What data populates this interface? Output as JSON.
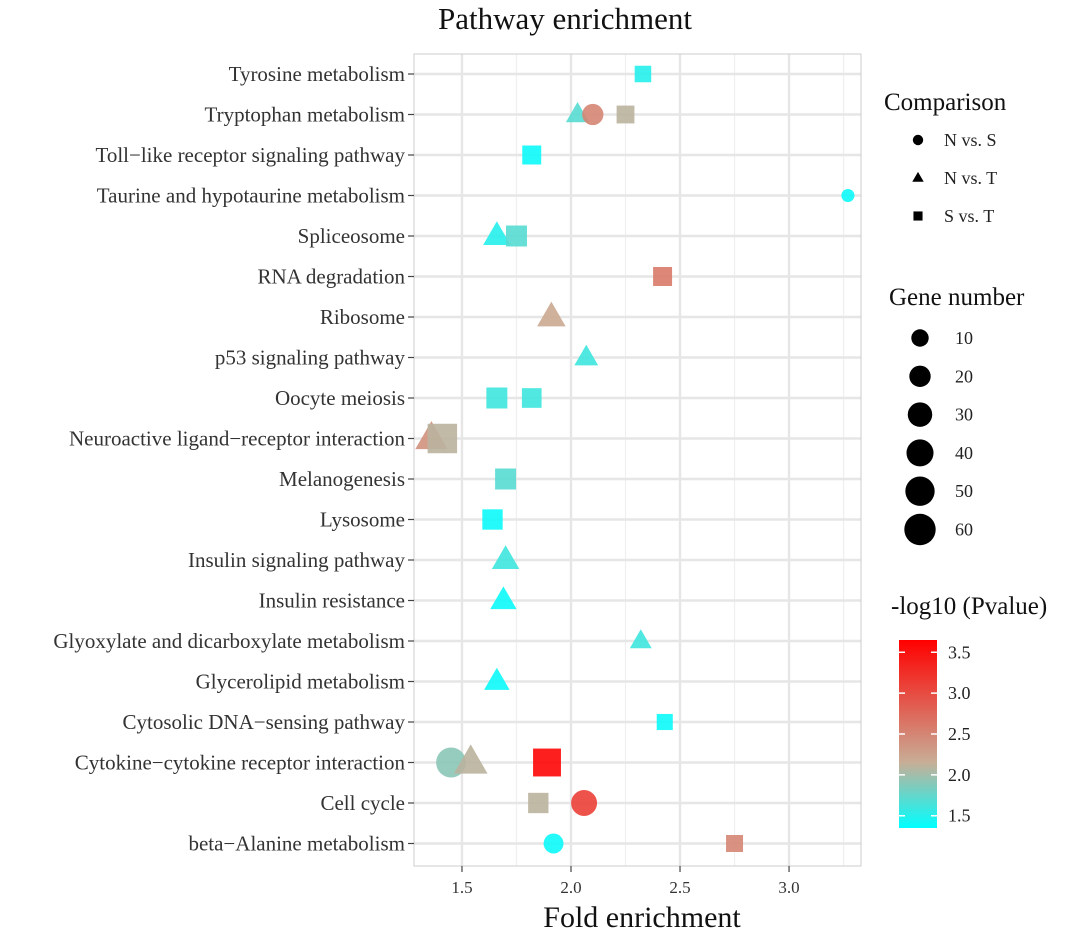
{
  "chart_data": {
    "type": "scatter",
    "title": "Pathway enrichment",
    "xlabel": "Fold enrichment",
    "ylabel": "",
    "xlim": [
      1.28,
      3.33
    ],
    "xticks": [
      1.5,
      2.0,
      2.5,
      3.0
    ],
    "xtick_labels": [
      "1.5",
      "2.0",
      "2.5",
      "3.0"
    ],
    "categories": [
      "Tyrosine metabolism",
      "Tryptophan metabolism",
      "Toll−like receptor signaling pathway",
      "Taurine and hypotaurine metabolism",
      "Spliceosome",
      "RNA degradation",
      "Ribosome",
      "p53 signaling pathway",
      "Oocyte meiosis",
      "Neuroactive ligand−receptor interaction",
      "Melanogenesis",
      "Lysosome",
      "Insulin signaling pathway",
      "Insulin resistance",
      "Glyoxylate and dicarboxylate metabolism",
      "Glycerolipid metabolism",
      "Cytosolic DNA−sensing pathway",
      "Cytokine−cytokine receptor interaction",
      "Cell cycle",
      "beta−Alanine metabolism"
    ],
    "points": [
      {
        "pathway": "Tyrosine metabolism",
        "comparison": "S vs. T",
        "fold": 2.33,
        "genes": 10,
        "neglog10p": 1.5
      },
      {
        "pathway": "Tryptophan metabolism",
        "comparison": "N vs. T",
        "fold": 2.03,
        "genes": 15,
        "neglog10p": 1.7
      },
      {
        "pathway": "Tryptophan metabolism",
        "comparison": "N vs. S",
        "fold": 2.1,
        "genes": 15,
        "neglog10p": 2.5
      },
      {
        "pathway": "Tryptophan metabolism",
        "comparison": "S vs. T",
        "fold": 2.25,
        "genes": 13,
        "neglog10p": 2.1
      },
      {
        "pathway": "Toll−like receptor signaling pathway",
        "comparison": "S vs. T",
        "fold": 1.82,
        "genes": 16,
        "neglog10p": 1.4
      },
      {
        "pathway": "Taurine and hypotaurine metabolism",
        "comparison": "N vs. S",
        "fold": 3.27,
        "genes": 2,
        "neglog10p": 1.4
      },
      {
        "pathway": "Spliceosome",
        "comparison": "N vs. T",
        "fold": 1.66,
        "genes": 25,
        "neglog10p": 1.5
      },
      {
        "pathway": "Spliceosome",
        "comparison": "S vs. T",
        "fold": 1.75,
        "genes": 22,
        "neglog10p": 1.7
      },
      {
        "pathway": "RNA degradation",
        "comparison": "S vs. T",
        "fold": 2.42,
        "genes": 16,
        "neglog10p": 2.6
      },
      {
        "pathway": "Ribosome",
        "comparison": "N vs. T",
        "fold": 1.91,
        "genes": 28,
        "neglog10p": 2.2
      },
      {
        "pathway": "p53 signaling pathway",
        "comparison": "N vs. T",
        "fold": 2.07,
        "genes": 16,
        "neglog10p": 1.6
      },
      {
        "pathway": "Oocyte meiosis",
        "comparison": "S vs. T",
        "fold": 1.66,
        "genes": 22,
        "neglog10p": 1.6
      },
      {
        "pathway": "Oocyte meiosis",
        "comparison": "S vs. T",
        "fold": 1.82,
        "genes": 18,
        "neglog10p": 1.6
      },
      {
        "pathway": "Neuroactive ligand−receptor interaction",
        "comparison": "N vs. T",
        "fold": 1.36,
        "genes": 40,
        "neglog10p": 2.4
      },
      {
        "pathway": "Neuroactive ligand−receptor interaction",
        "comparison": "S vs. T",
        "fold": 1.41,
        "genes": 58,
        "neglog10p": 2.1
      },
      {
        "pathway": "Melanogenesis",
        "comparison": "S vs. T",
        "fold": 1.7,
        "genes": 22,
        "neglog10p": 1.7
      },
      {
        "pathway": "Lysosome",
        "comparison": "S vs. T",
        "fold": 1.64,
        "genes": 20,
        "neglog10p": 1.4
      },
      {
        "pathway": "Insulin signaling pathway",
        "comparison": "N vs. T",
        "fold": 1.7,
        "genes": 25,
        "neglog10p": 1.6
      },
      {
        "pathway": "Insulin resistance",
        "comparison": "N vs. T",
        "fold": 1.69,
        "genes": 22,
        "neglog10p": 1.4
      },
      {
        "pathway": "Glyoxylate and dicarboxylate metabolism",
        "comparison": "N vs. T",
        "fold": 2.32,
        "genes": 12,
        "neglog10p": 1.6
      },
      {
        "pathway": "Glycerolipid metabolism",
        "comparison": "N vs. T",
        "fold": 1.66,
        "genes": 20,
        "neglog10p": 1.4
      },
      {
        "pathway": "Cytosolic DNA−sensing pathway",
        "comparison": "S vs. T",
        "fold": 2.43,
        "genes": 9,
        "neglog10p": 1.4
      },
      {
        "pathway": "Cytokine−cytokine receptor interaction",
        "comparison": "N vs. S",
        "fold": 1.45,
        "genes": 42,
        "neglog10p": 1.9
      },
      {
        "pathway": "Cytokine−cytokine receptor interaction",
        "comparison": "N vs. T",
        "fold": 1.54,
        "genes": 45,
        "neglog10p": 2.1
      },
      {
        "pathway": "Cytokine−cytokine receptor interaction",
        "comparison": "S vs. T",
        "fold": 1.89,
        "genes": 50,
        "neglog10p": 3.6
      },
      {
        "pathway": "Cell cycle",
        "comparison": "S vs. T",
        "fold": 1.85,
        "genes": 20,
        "neglog10p": 2.1
      },
      {
        "pathway": "Cell cycle",
        "comparison": "N vs. S",
        "fold": 2.06,
        "genes": 28,
        "neglog10p": 3.1
      },
      {
        "pathway": "beta−Alanine metabolism",
        "comparison": "N vs. S",
        "fold": 1.92,
        "genes": 12,
        "neglog10p": 1.4
      },
      {
        "pathway": "beta−Alanine metabolism",
        "comparison": "S vs. T",
        "fold": 2.75,
        "genes": 11,
        "neglog10p": 2.5
      }
    ],
    "legend": {
      "comparison": {
        "title": "Comparison",
        "items": [
          {
            "label": "N vs. S",
            "shape": "circle"
          },
          {
            "label": "N vs. T",
            "shape": "triangle"
          },
          {
            "label": "S vs. T",
            "shape": "square"
          }
        ]
      },
      "size": {
        "title": "Gene number",
        "items": [
          {
            "label": "10",
            "value": 10
          },
          {
            "label": "20",
            "value": 20
          },
          {
            "label": "30",
            "value": 30
          },
          {
            "label": "40",
            "value": 40
          },
          {
            "label": "50",
            "value": 50
          },
          {
            "label": "60",
            "value": 60
          }
        ]
      },
      "color": {
        "title": "-log10 (Pvalue)",
        "range": [
          1.35,
          3.65
        ],
        "ticks": [
          1.5,
          2.0,
          2.5,
          3.0,
          3.5
        ],
        "tick_labels": [
          "1.5",
          "2.0",
          "2.5",
          "3.0",
          "3.5"
        ],
        "low_color": "#00ffff",
        "mid_color": "#c8ad96",
        "high_color": "#ff0000"
      }
    },
    "grid": true,
    "panel_background": "#ebebeb"
  }
}
